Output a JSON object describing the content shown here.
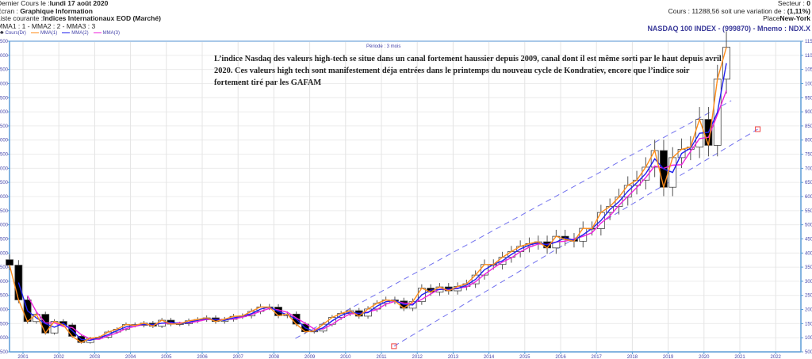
{
  "header": {
    "last_quote_label": "Dernier Cours le :",
    "last_quote_date": "lundi 17 août 2020",
    "screen_label": "Ecran :",
    "screen_value": "Graphique Information",
    "list_label": "Liste courante :",
    "list_value": "Indices Internationaux EOD (Marché)",
    "mma_settings": "MMA1 : 1 - MMA2 : 2 - MMA3 : 3",
    "sector_label": "Secteur :",
    "sector_value": "0",
    "price_text": "Cours : 11288,56 soit une variation de :",
    "variation": "(1,11%)",
    "place_label": "Place",
    "place_value": "New-York",
    "ticker": "NASDAQ 100 INDEX - (999870) - Mnemo : NDX.X"
  },
  "legend": [
    {
      "label": "Cours(Dr)",
      "color": "#000000",
      "icon": "candlestick-icon"
    },
    {
      "label": "MMA(1)",
      "color": "#ff8c1a"
    },
    {
      "label": "MMA(2)",
      "color": "#2020ee"
    },
    {
      "label": "MMA(3)",
      "color": "#ee22dd"
    }
  ],
  "period": "Période : 3 mois",
  "annotation": "L’indice Nasdaq des valeurs high-tech se situe dans un canal fortement haussier depuis 2009, canal dont il est même sorti par le haut depuis avril 2020. Ces valeurs high tech sont manifestement déja entrées dans le printemps du nouveau cycle de Kondratiev, encore que l’indice soir fortement tiré par les GAFAM",
  "chart_data": {
    "type": "candlestick",
    "period": "quarterly",
    "x_start_quarter": "2000-Q3",
    "first_open": 3763,
    "close": [
      3570,
      2341,
      1573,
      1830,
      1168,
      1577,
      1452,
      1051,
      832,
      984,
      1018,
      1201,
      1303,
      1468,
      1439,
      1517,
      1412,
      1621,
      1483,
      1494,
      1601,
      1645,
      1704,
      1575,
      1655,
      1757,
      1772,
      1934,
      2091,
      2085,
      1781,
      1837,
      1483,
      1212,
      1237,
      1477,
      1718,
      1860,
      1957,
      1765,
      2017,
      2218,
      2338,
      2301,
      2046,
      2278,
      2756,
      2616,
      2799,
      2661,
      2819,
      2910,
      3219,
      3592,
      3596,
      3849,
      4049,
      4236,
      4333,
      4397,
      4181,
      4593,
      4483,
      4418,
      4875,
      4863,
      5436,
      5647,
      5979,
      6396,
      6581,
      7040,
      7628,
      6330,
      7378,
      7672,
      7750,
      8733,
      7813,
      10156,
      11288
    ],
    "moving_averages": [
      {
        "name": "MMA(1)",
        "period": 1,
        "color": "#ff8c1a"
      },
      {
        "name": "MMA(2)",
        "period": 2,
        "color": "#2020ee"
      },
      {
        "name": "MMA(3)",
        "period": 3,
        "color": "#ee22dd"
      }
    ],
    "x_ticks": [
      "2001",
      "2002",
      "2003",
      "2004",
      "2005",
      "2006",
      "2007",
      "2008",
      "2009",
      "2010",
      "2011",
      "2012",
      "2013",
      "2014",
      "2015",
      "2016",
      "2017",
      "2018",
      "2019",
      "2020",
      "2021",
      "2022"
    ],
    "y_ticks": [
      500,
      1000,
      1500,
      2000,
      2500,
      3000,
      3500,
      4000,
      4500,
      5000,
      5500,
      6000,
      6500,
      7000,
      7500,
      8000,
      8500,
      9000,
      9500,
      10000,
      10500,
      11000,
      11500
    ],
    "ylim": [
      500,
      11500
    ],
    "xlim": [
      2000.6,
      2022.6
    ],
    "grid": true,
    "channel_lines": [
      {
        "name": "upper",
        "from": [
          2008.6,
          977
        ],
        "to": [
          2020.76,
          9394
        ],
        "color": "#7070ee",
        "style": "dashed"
      },
      {
        "name": "lower",
        "from": [
          2011.35,
          700
        ],
        "to": [
          2021.5,
          8385
        ],
        "color": "#7070ee",
        "style": "dashed",
        "end_markers": "#ee4444"
      }
    ],
    "up_color": "#ffffff",
    "down_color": "#000000"
  }
}
